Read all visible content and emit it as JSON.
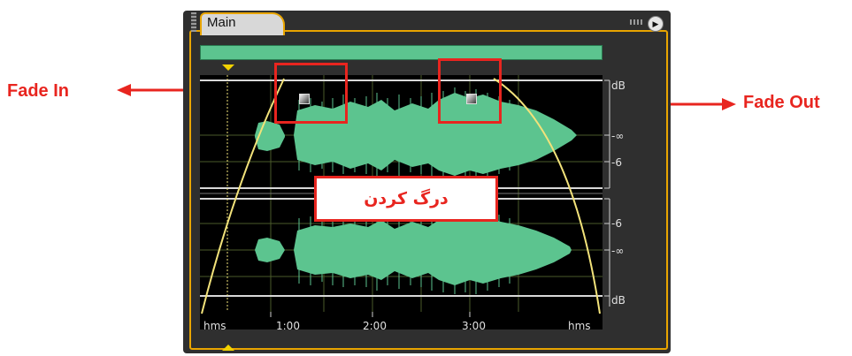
{
  "annotations": {
    "fade_in": "Fade In",
    "fade_out": "Fade Out",
    "drag": "درگ کردن",
    "accent_color": "#e8251f"
  },
  "panel": {
    "tab_label": "Main",
    "menu_icon": "play-triangle",
    "frame_color": "#e9a500"
  },
  "waveform": {
    "color": "#5cc48f",
    "fade_curve_color": "#f2e27a"
  },
  "db_ruler": {
    "top_label": "dB",
    "labels": [
      "-∞",
      "-6",
      "-6",
      "-∞",
      "dB"
    ]
  },
  "time_ruler": {
    "labels": [
      "hms",
      "1:00",
      "2:00",
      "3:00",
      "hms"
    ]
  }
}
